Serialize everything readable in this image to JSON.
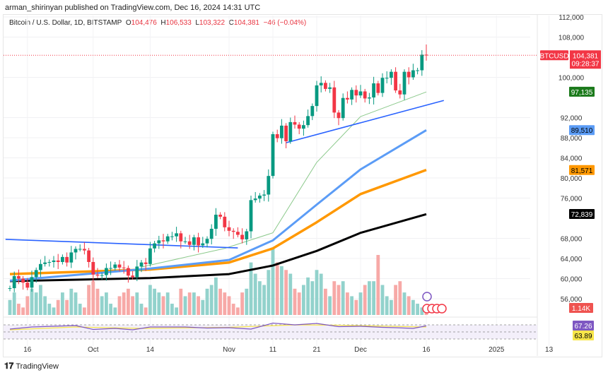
{
  "header": {
    "published": "arman_shirinyan published on TradingView.com, Dec 16, 2024 14:31 UTC"
  },
  "legend": {
    "symbol": "Bitcoin / U.S. Dollar, 1D, BITSTAMP",
    "o_label": "O",
    "o": "104,476",
    "h_label": "H",
    "h": "106,533",
    "l_label": "L",
    "l": "103,322",
    "c_label": "C",
    "c": "104,381",
    "change": "−46 (−0.04%)"
  },
  "price_axis": {
    "ticks": [
      "112,000",
      "108,000",
      "100,000",
      "92,000",
      "88,000",
      "84,000",
      "80,000",
      "76,000",
      "68,000",
      "64,000",
      "60,000",
      "56,000"
    ],
    "tick_values": [
      112,
      108,
      100,
      92,
      88,
      84,
      80,
      76,
      68,
      64,
      60,
      56
    ]
  },
  "labels": {
    "symbol": "BTCUSD",
    "last": "104,381",
    "countdown": "09:28:37",
    "ma20": "97,135",
    "ma50": "89,510",
    "ma100": "81,571",
    "ma200": "72,839",
    "volume": "1.14K",
    "rsi": "67.26",
    "rsi_ma": "63.89"
  },
  "colors": {
    "up": "#089981",
    "down": "#f23645",
    "ma20": "#8bc98b",
    "ma50": "#5b9cf6",
    "ma100": "#ff9800",
    "ma200": "#000000",
    "trend": "#2962ff",
    "rsi": "#7e57c2",
    "rsi_ma": "#f7e64a"
  },
  "time_axis": {
    "labels": [
      "16",
      "Oct",
      "14",
      "Nov",
      "11",
      "21",
      "Dec",
      "16",
      "2025",
      "13"
    ],
    "day_index": [
      4,
      19,
      32,
      50,
      60,
      70,
      80,
      95,
      111,
      123
    ]
  },
  "chart_data": {
    "type": "candlestick",
    "start": "2024-09-12",
    "unit": "thousand USD",
    "close": [
      58.1,
      60.5,
      60.0,
      59.2,
      58.2,
      60.3,
      61.7,
      62.9,
      63.2,
      63.3,
      63.6,
      63.3,
      64.3,
      63.2,
      65.2,
      65.9,
      65.9,
      65.6,
      63.3,
      60.8,
      60.6,
      60.7,
      62.1,
      62.1,
      62.8,
      62.2,
      62.1,
      60.6,
      60.3,
      62.4,
      63.2,
      62.9,
      66.0,
      67.0,
      67.6,
      67.4,
      68.4,
      68.4,
      69.0,
      67.4,
      67.4,
      66.7,
      68.2,
      66.6,
      67.0,
      67.9,
      69.9,
      72.7,
      72.3,
      70.2,
      69.5,
      69.3,
      68.7,
      67.8,
      69.4,
      75.6,
      75.9,
      76.5,
      76.7,
      80.4,
      88.7,
      87.9,
      90.4,
      87.3,
      91.1,
      90.6,
      89.8,
      90.5,
      92.3,
      94.3,
      98.4,
      98.9,
      97.7,
      98.0,
      93.0,
      91.9,
      95.9,
      95.6,
      97.5,
      96.4,
      97.2,
      95.8,
      96.0,
      98.8,
      96.9,
      99.9,
      99.9,
      101.1,
      97.4,
      96.6,
      101.1,
      100.0,
      101.4,
      101.4,
      104.5,
      104.381
    ],
    "first_open": 58.0,
    "last_high": 106.533,
    "last_low": 103.322,
    "volume_k": [
      4,
      6,
      3,
      2,
      5,
      7,
      6,
      8,
      5,
      3,
      2,
      4,
      6,
      4,
      7,
      6,
      3,
      2,
      8,
      9,
      7,
      5,
      6,
      3,
      2,
      5,
      6,
      7,
      5,
      6,
      3,
      2,
      8,
      7,
      6,
      5,
      6,
      3,
      2,
      7,
      5,
      6,
      6,
      5,
      4,
      7,
      8,
      10,
      7,
      6,
      5,
      3,
      2,
      6,
      7,
      14,
      11,
      9,
      8,
      12,
      18,
      14,
      13,
      12,
      11,
      7,
      6,
      8,
      10,
      9,
      12,
      11,
      7,
      5,
      9,
      8,
      9,
      6,
      5,
      4,
      6,
      8,
      9,
      9,
      16,
      8,
      5,
      4,
      8,
      9,
      6,
      5,
      4,
      3,
      2,
      1.14
    ],
    "ma": {
      "ma20": [
        [
          30,
          62.3
        ],
        [
          49,
          66
        ],
        [
          60,
          69.1
        ],
        [
          70,
          83.1
        ],
        [
          80,
          92.2
        ],
        [
          95,
          97.1
        ]
      ],
      "ma50": [
        [
          0,
          59.6
        ],
        [
          32,
          62
        ],
        [
          50,
          63.7
        ],
        [
          60,
          67.6
        ],
        [
          70,
          74.7
        ],
        [
          80,
          81.7
        ],
        [
          95,
          89.5
        ]
      ],
      "ma100": [
        [
          0,
          60.9
        ],
        [
          32,
          61.8
        ],
        [
          50,
          63.2
        ],
        [
          60,
          66
        ],
        [
          70,
          71.2
        ],
        [
          80,
          76.8
        ],
        [
          95,
          81.6
        ]
      ],
      "ma200": [
        [
          0,
          59.5
        ],
        [
          32,
          60.1
        ],
        [
          50,
          60.9
        ],
        [
          60,
          62.6
        ],
        [
          70,
          65.5
        ],
        [
          80,
          69.1
        ],
        [
          95,
          72.8
        ]
      ]
    },
    "trendlines": [
      [
        [
          -1,
          67.8
        ],
        [
          52,
          66.1
        ]
      ],
      [
        [
          63,
          87.0
        ],
        [
          99,
          95.4
        ]
      ]
    ],
    "rsi": [
      [
        0,
        58
      ],
      [
        5,
        64
      ],
      [
        10,
        66
      ],
      [
        15,
        68
      ],
      [
        19,
        57
      ],
      [
        24,
        60
      ],
      [
        28,
        56
      ],
      [
        32,
        64
      ],
      [
        40,
        64
      ],
      [
        45,
        61
      ],
      [
        50,
        62
      ],
      [
        55,
        58
      ],
      [
        60,
        75
      ],
      [
        65,
        70
      ],
      [
        70,
        74
      ],
      [
        75,
        65
      ],
      [
        80,
        66
      ],
      [
        85,
        63
      ],
      [
        88,
        62
      ],
      [
        92,
        60
      ],
      [
        95,
        67.26
      ]
    ],
    "rsi_ma": [
      [
        0,
        56
      ],
      [
        15,
        64
      ],
      [
        30,
        60
      ],
      [
        50,
        63
      ],
      [
        65,
        70
      ],
      [
        75,
        69
      ],
      [
        95,
        63.89
      ]
    ]
  }
}
